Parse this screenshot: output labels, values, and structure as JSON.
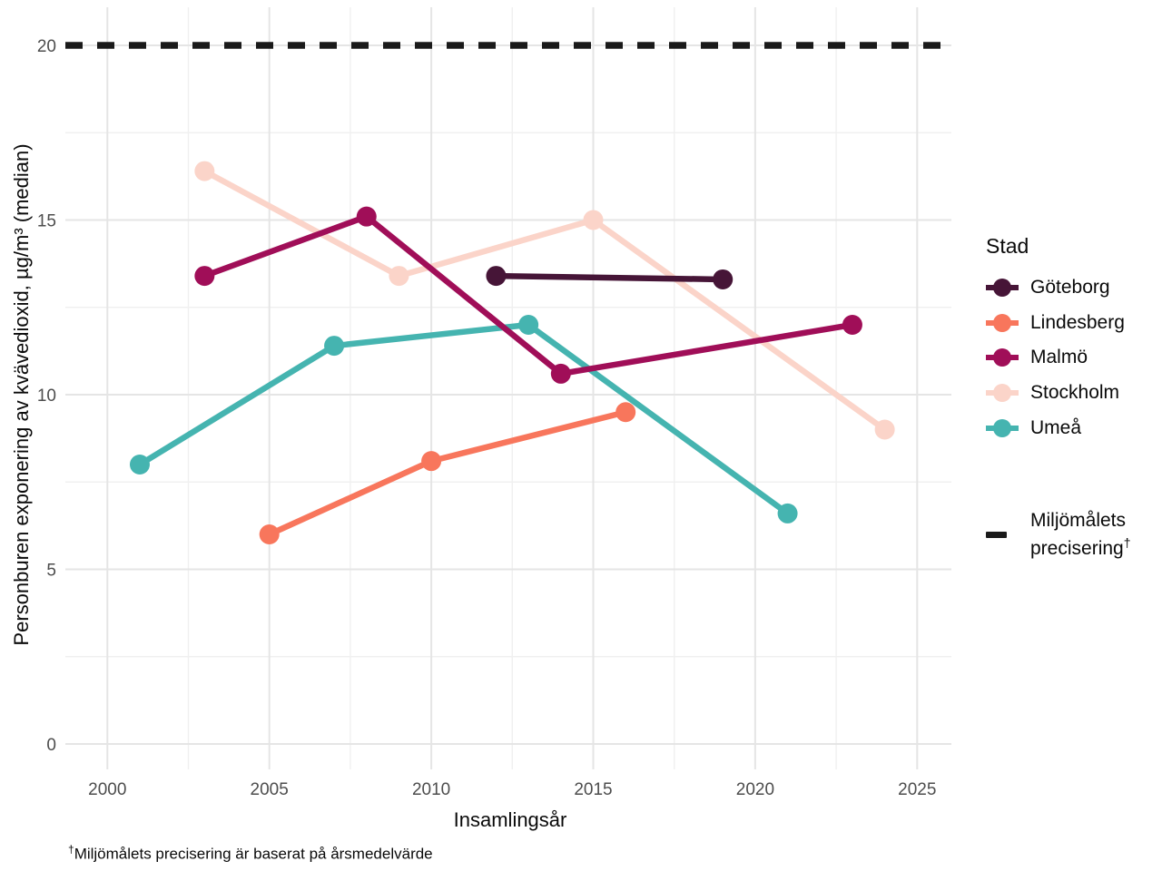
{
  "legend": {
    "title": "Stad",
    "reference": {
      "line1": "Miljömålets",
      "line2": "precisering",
      "dagger": "†"
    }
  },
  "caption": {
    "dagger": "†",
    "text": "Miljömålets precisering är baserat på årsmedelvärde"
  },
  "chart_data": {
    "type": "line",
    "title": "",
    "xlabel": "Insamlingsår",
    "ylabel": "Personburen exponering av kvävedioxid, µg/m³ (median)",
    "x_ticks": [
      2000,
      2005,
      2010,
      2015,
      2020,
      2025
    ],
    "y_ticks": [
      0,
      5,
      10,
      15,
      20
    ],
    "xlim": [
      1998.7,
      2026.1
    ],
    "ylim": [
      -0.7,
      21.1
    ],
    "grid": "major-and-minor",
    "legend_position": "right",
    "legend_title": "Stad",
    "series": [
      {
        "name": "Göteborg",
        "color": "#461537",
        "points": [
          [
            2012,
            13.4
          ],
          [
            2019,
            13.3
          ]
        ]
      },
      {
        "name": "Lindesberg",
        "color": "#F8765C",
        "points": [
          [
            2005,
            6.0
          ],
          [
            2010,
            8.1
          ],
          [
            2016,
            9.5
          ]
        ]
      },
      {
        "name": "Malmö",
        "color": "#A00E58",
        "points": [
          [
            2003,
            13.4
          ],
          [
            2008,
            15.1
          ],
          [
            2014,
            10.6
          ],
          [
            2023,
            12.0
          ]
        ]
      },
      {
        "name": "Stockholm",
        "color": "#FBD4C9",
        "points": [
          [
            2003,
            16.4
          ],
          [
            2009,
            13.4
          ],
          [
            2015,
            15.0
          ],
          [
            2024,
            9.0
          ]
        ]
      },
      {
        "name": "Umeå",
        "color": "#45B4B0",
        "points": [
          [
            2001,
            8.0
          ],
          [
            2007,
            11.4
          ],
          [
            2013,
            12.0
          ],
          [
            2021,
            6.6
          ]
        ]
      }
    ],
    "reference_line": {
      "value": 20,
      "style": "dashed",
      "color": "#1A1A1A",
      "label": "Miljömålets precisering†"
    },
    "colors": {
      "tick_label": "#4D4D4D",
      "grid_major": "#E5E5E5",
      "grid_minor": "#F0F0F0",
      "background": "#FFFFFF"
    }
  }
}
